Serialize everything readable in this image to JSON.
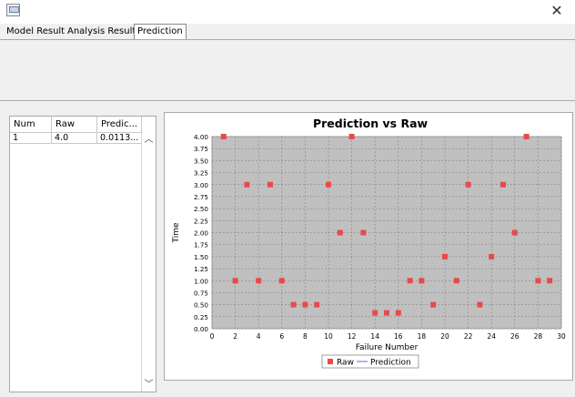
{
  "window": {
    "close_glyph": "✕",
    "icon": "java-app-icon"
  },
  "tabs": [
    {
      "label": "Model Result",
      "active": false
    },
    {
      "label": "Analysis Result",
      "active": false
    },
    {
      "label": "Prediction",
      "active": true
    }
  ],
  "table": {
    "columns": [
      "Num",
      "Raw",
      "Predic..."
    ],
    "rows": [
      [
        "1",
        "4.0",
        "0.0113..."
      ]
    ]
  },
  "chart_data": {
    "type": "scatter",
    "title": "Prediction vs Raw",
    "xlabel": "Failure Number",
    "ylabel": "Time",
    "xlim": [
      0,
      30
    ],
    "ylim": [
      0,
      4
    ],
    "xticks": [
      0,
      2,
      4,
      6,
      8,
      10,
      12,
      14,
      16,
      18,
      20,
      22,
      24,
      26,
      28,
      30
    ],
    "yticks": [
      0,
      0.25,
      0.5,
      0.75,
      1,
      1.25,
      1.5,
      1.75,
      2,
      2.25,
      2.5,
      2.75,
      3,
      3.25,
      3.5,
      3.75,
      4
    ],
    "grid": true,
    "legend_position": "bottom",
    "colors": {
      "raw": "#e84a4a",
      "prediction": "#6a6ad8",
      "plot_bg": "#c0c0c0",
      "grid": "#7a7a7a"
    },
    "series": [
      {
        "name": "Raw",
        "marker": "square",
        "x": [
          1,
          2,
          3,
          4,
          5,
          6,
          7,
          8,
          9,
          10,
          11,
          12,
          13,
          14,
          15,
          16,
          17,
          18,
          19,
          20,
          21,
          22,
          23,
          24,
          25,
          26,
          27,
          28,
          29
        ],
        "y": [
          4,
          1,
          3,
          1,
          3,
          1,
          0.5,
          0.5,
          0.5,
          3,
          2,
          4,
          2,
          0.33,
          0.33,
          0.33,
          1,
          1,
          0.5,
          1.5,
          1,
          3,
          0.5,
          1.5,
          3,
          2,
          4,
          1,
          1
        ]
      },
      {
        "name": "Prediction",
        "marker": "line",
        "x": [],
        "y": []
      }
    ]
  }
}
